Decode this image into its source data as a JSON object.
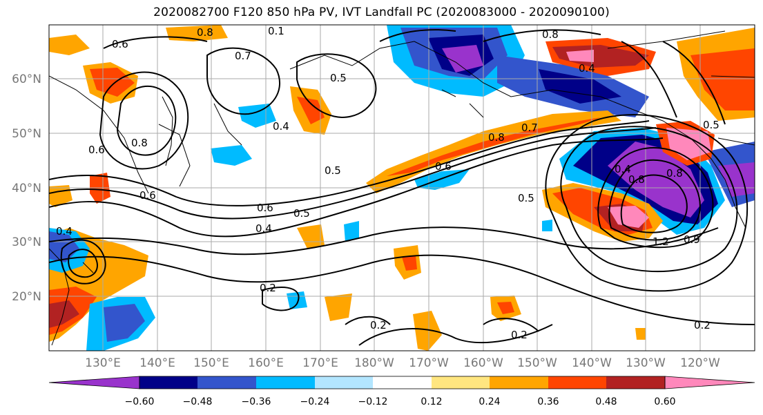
{
  "title": "2020082700 F120 850 hPa PV, IVT Landfall PC (2020083000 - 2020090100)",
  "map": {
    "lat_labels": [
      "60°N",
      "50°N",
      "40°N",
      "30°N",
      "20°N"
    ],
    "lon_labels": [
      "130°E",
      "140°E",
      "150°E",
      "160°E",
      "170°E",
      "180°W",
      "170°W",
      "160°W",
      "150°W",
      "140°W",
      "130°W",
      "120°W"
    ],
    "contour_labels": [
      "0.8",
      "0.1",
      "0.6",
      "0.7",
      "0.4",
      "0.5",
      "0.8",
      "0.4",
      "0.8",
      "0.6",
      "0.5",
      "0.6",
      "0.4",
      "0.5",
      "0.6",
      "0.4",
      "0.8",
      "0.7",
      "0.8",
      "0.6",
      "0.5",
      "0.5",
      "1.2",
      "0.9",
      "0.2",
      "0.2",
      "0.2",
      "0.2",
      "0.4",
      "0.8"
    ]
  },
  "colorbar": {
    "ticks": [
      "−0.60",
      "−0.48",
      "−0.36",
      "−0.24",
      "−0.12",
      "0.12",
      "0.24",
      "0.36",
      "0.48",
      "0.60"
    ],
    "colors": [
      "#9933cc",
      "#000088",
      "#3355cc",
      "#00bbff",
      "#b3e6ff",
      "#ffffff",
      "#ffe680",
      "#ffa500",
      "#ff4500",
      "#b22222",
      "#ff88bb"
    ]
  }
}
